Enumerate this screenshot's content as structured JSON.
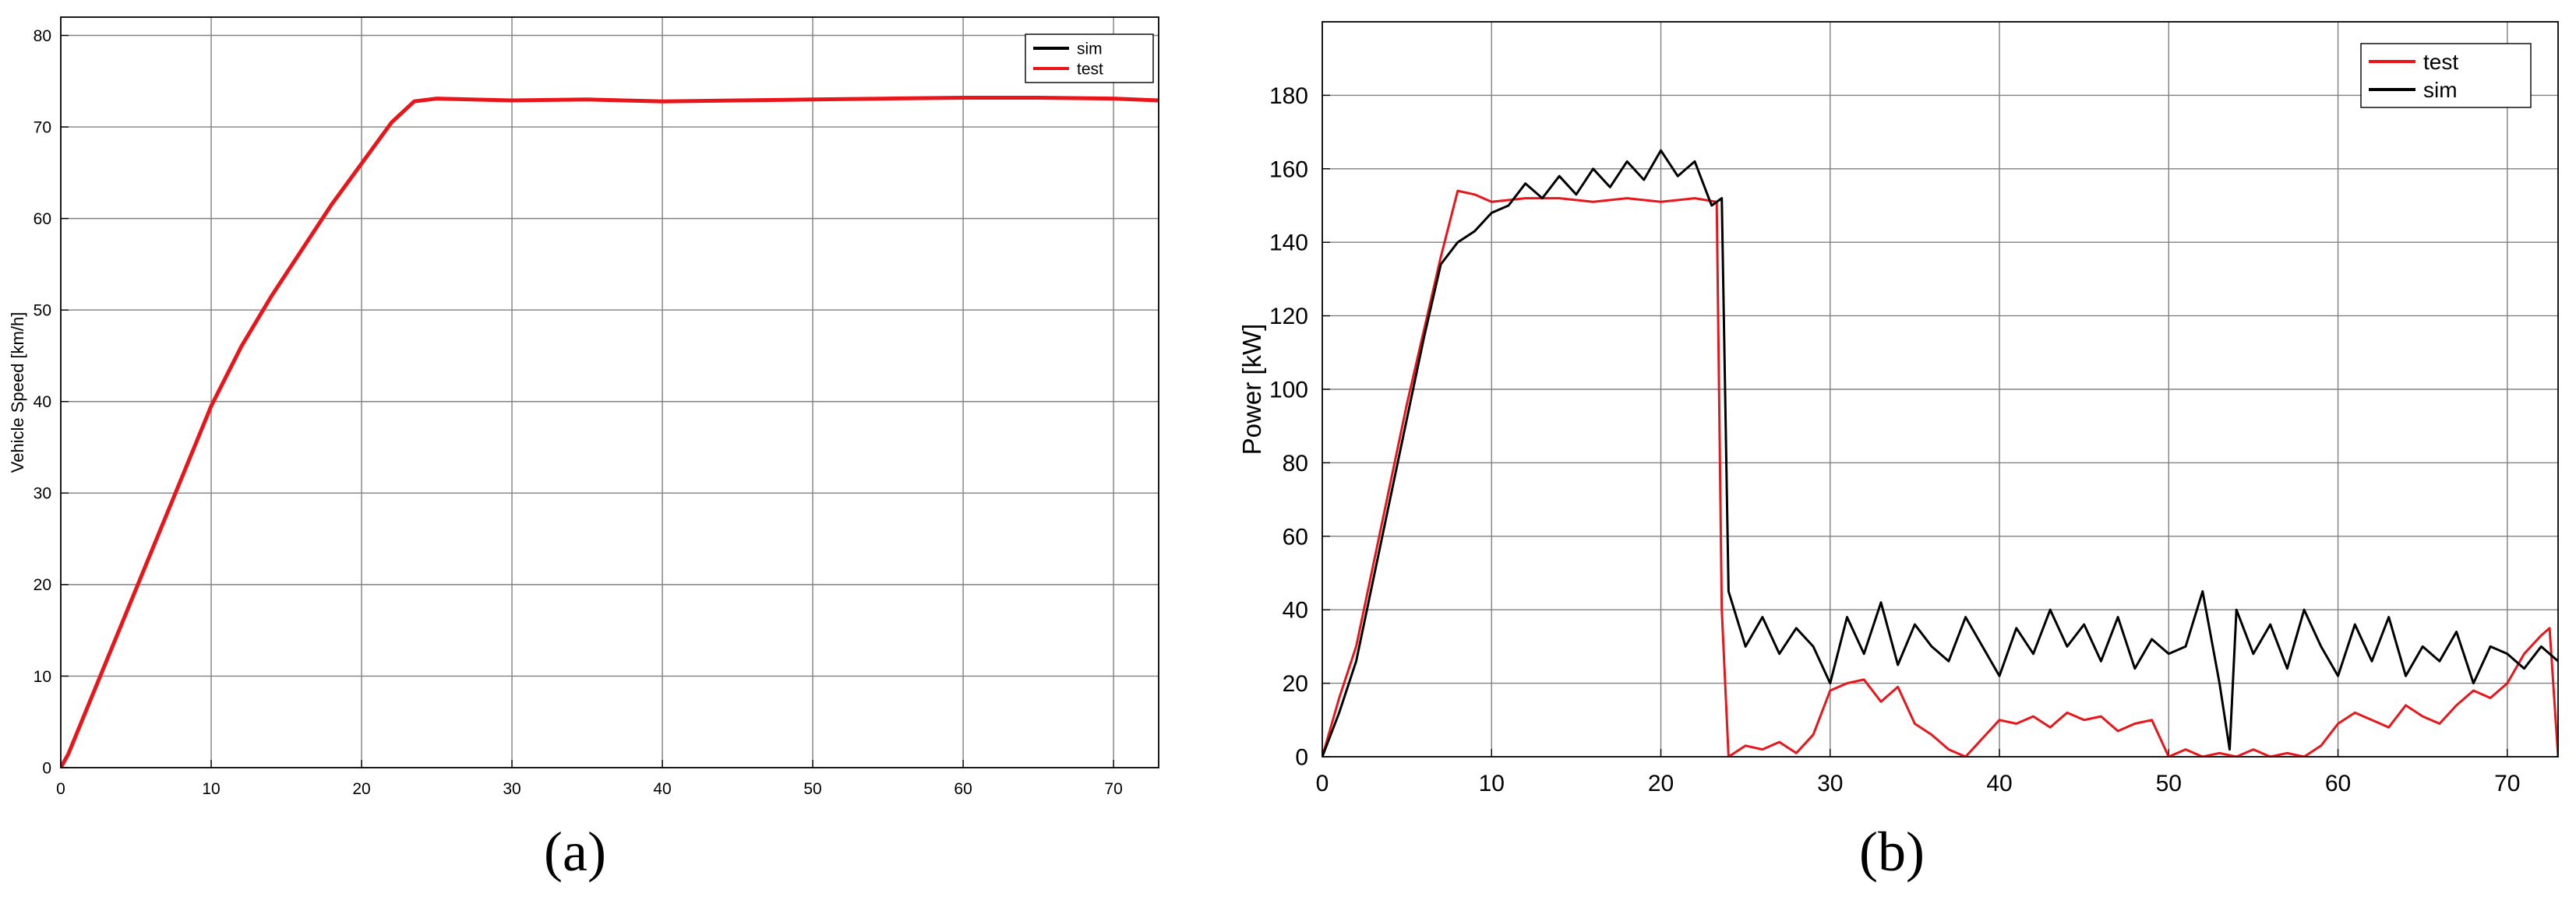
{
  "colors": {
    "sim": "#000000",
    "test": "#e8161a",
    "grid": "#808080"
  },
  "chart_data": [
    {
      "type": "line",
      "panel_label": "(a)",
      "title": "",
      "xlabel": "",
      "ylabel": "Vehicle Speed [km/h]",
      "xlim": [
        0,
        73
      ],
      "ylim": [
        0,
        82
      ],
      "x_ticks": [
        0,
        10,
        20,
        30,
        40,
        50,
        60,
        70
      ],
      "y_ticks": [
        0,
        10,
        20,
        30,
        40,
        50,
        60,
        70,
        80
      ],
      "grid": true,
      "legend_position": "top-right",
      "legend": [
        "sim",
        "test"
      ],
      "series": [
        {
          "name": "sim",
          "color": "#000000",
          "x": [
            0,
            0.5,
            2,
            4,
            6,
            8,
            10,
            12,
            14,
            16,
            18,
            20,
            22,
            23.5,
            25,
            30,
            35,
            40,
            45,
            50,
            55,
            60,
            65,
            70,
            73
          ],
          "y": [
            0,
            1.5,
            7.5,
            15.5,
            23.5,
            31.5,
            39.5,
            46,
            51.5,
            56.5,
            61.5,
            66,
            70.5,
            72.8,
            73.1,
            72.9,
            73.0,
            72.8,
            72.9,
            73.0,
            73.1,
            73.2,
            73.2,
            73.1,
            72.9
          ]
        },
        {
          "name": "test",
          "color": "#e8161a",
          "x": [
            0,
            0.5,
            2,
            4,
            6,
            8,
            10,
            12,
            14,
            16,
            18,
            20,
            22,
            23.5,
            25,
            30,
            35,
            40,
            45,
            50,
            55,
            60,
            65,
            70,
            73
          ],
          "y": [
            0,
            1.5,
            7.5,
            15.5,
            23.5,
            31.5,
            39.5,
            46,
            51.5,
            56.5,
            61.5,
            66,
            70.5,
            72.8,
            73.1,
            72.9,
            73.0,
            72.8,
            72.9,
            73.0,
            73.1,
            73.2,
            73.2,
            73.1,
            72.9
          ]
        }
      ]
    },
    {
      "type": "line",
      "panel_label": "(b)",
      "title": "",
      "xlabel": "",
      "ylabel": "Power [kW]",
      "xlim": [
        0,
        73
      ],
      "ylim": [
        0,
        200
      ],
      "x_ticks": [
        0,
        10,
        20,
        30,
        40,
        50,
        60,
        70
      ],
      "y_ticks": [
        0,
        20,
        40,
        60,
        80,
        100,
        120,
        140,
        160,
        180
      ],
      "grid": true,
      "legend_position": "top-right",
      "legend": [
        "test",
        "sim"
      ],
      "series": [
        {
          "name": "test",
          "color": "#e8161a",
          "x": [
            0,
            1,
            2,
            3,
            4,
            5,
            6,
            7,
            8,
            9,
            10,
            12,
            14,
            16,
            18,
            20,
            22,
            23.3,
            23.6,
            24,
            25,
            26,
            27,
            28,
            29,
            30,
            31,
            32,
            33,
            34,
            35,
            36,
            37,
            38,
            39,
            40,
            41,
            42,
            43,
            44,
            45,
            46,
            47,
            48,
            49,
            50,
            51,
            52,
            53,
            54,
            55,
            56,
            57,
            58,
            59,
            60,
            61,
            62,
            63,
            64,
            65,
            66,
            67,
            68,
            69,
            70,
            71,
            72,
            72.5,
            73
          ],
          "y": [
            0,
            16,
            30,
            52,
            74,
            96,
            116,
            136,
            154,
            153,
            151,
            152,
            152,
            151,
            152,
            151,
            152,
            151,
            40,
            0,
            3,
            2,
            4,
            1,
            6,
            18,
            20,
            21,
            15,
            19,
            9,
            6,
            2,
            0,
            5,
            10,
            9,
            11,
            8,
            12,
            10,
            11,
            7,
            9,
            10,
            0,
            2,
            0,
            1,
            0,
            2,
            0,
            1,
            0,
            3,
            9,
            12,
            10,
            8,
            14,
            11,
            9,
            14,
            18,
            16,
            20,
            28,
            33,
            35,
            0
          ]
        },
        {
          "name": "sim",
          "color": "#000000",
          "x": [
            0,
            1,
            2,
            3,
            4,
            5,
            6,
            7,
            8,
            9,
            10,
            11,
            12,
            13,
            14,
            15,
            16,
            17,
            18,
            19,
            20,
            21,
            22,
            23,
            23.6,
            24,
            25,
            26,
            27,
            28,
            29,
            30,
            31,
            32,
            33,
            34,
            35,
            36,
            37,
            38,
            39,
            40,
            41,
            42,
            43,
            44,
            45,
            46,
            47,
            48,
            49,
            50,
            51,
            52,
            53,
            53.6,
            54,
            55,
            56,
            57,
            58,
            59,
            60,
            61,
            62,
            63,
            64,
            65,
            66,
            67,
            68,
            69,
            70,
            71,
            72,
            73
          ],
          "y": [
            0,
            12,
            26,
            48,
            70,
            92,
            114,
            134,
            140,
            143,
            148,
            150,
            156,
            152,
            158,
            153,
            160,
            155,
            162,
            157,
            165,
            158,
            162,
            150,
            152,
            45,
            30,
            38,
            28,
            35,
            30,
            20,
            38,
            28,
            42,
            25,
            36,
            30,
            26,
            38,
            30,
            22,
            35,
            28,
            40,
            30,
            36,
            26,
            38,
            24,
            32,
            28,
            30,
            45,
            20,
            2,
            40,
            28,
            36,
            24,
            40,
            30,
            22,
            36,
            26,
            38,
            22,
            30,
            26,
            34,
            20,
            30,
            28,
            24,
            30,
            26
          ]
        }
      ]
    }
  ]
}
